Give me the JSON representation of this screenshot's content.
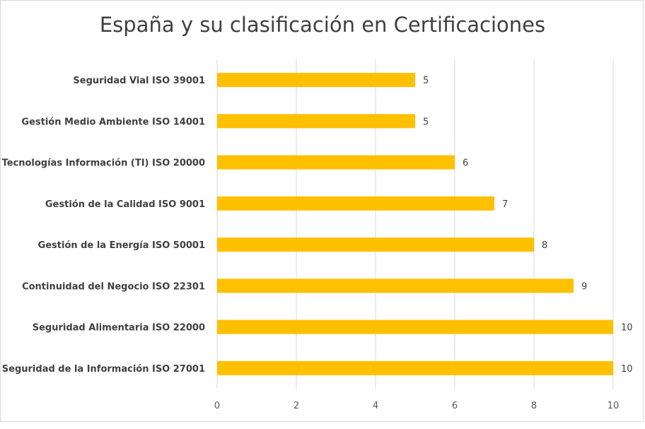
{
  "chart_data": {
    "type": "bar",
    "orientation": "horizontal",
    "title": "España y su clasificación en Certificaciones",
    "categories": [
      "Seguridad Vial ISO 39001",
      "Gestión Medio Ambiente ISO 14001",
      "Tecnologías Información (TI) ISO 20000",
      "Gestión de la Calidad ISO 9001",
      "Gestión de la Energía ISO 50001",
      "Continuidad del Negocio ISO 22301",
      "Seguridad Alimentaria ISO 22000",
      "Seguridad de la Información ISO 27001"
    ],
    "values": [
      5,
      5,
      6,
      7,
      8,
      9,
      10,
      10
    ],
    "xlim": [
      0,
      10
    ],
    "xticks": [
      0,
      2,
      4,
      6,
      8,
      10
    ],
    "xlabel": "",
    "ylabel": "",
    "grid": true,
    "bar_color": "#FFC000",
    "data_labels": true
  }
}
